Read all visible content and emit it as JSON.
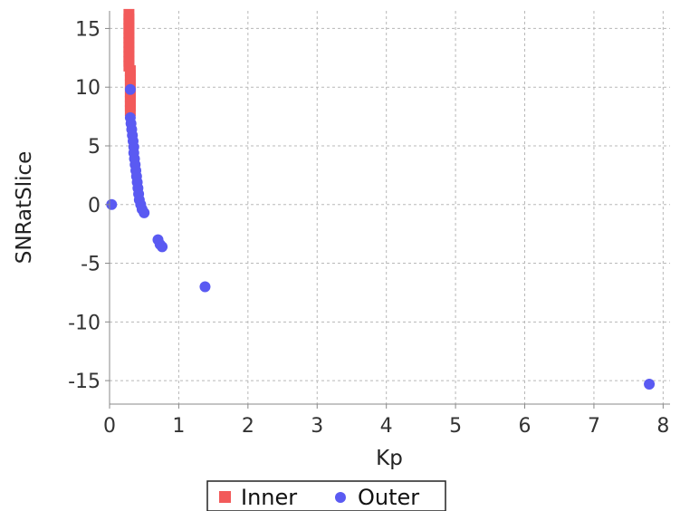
{
  "chart_data": {
    "type": "scatter",
    "title": "",
    "xlabel": "Kp",
    "ylabel": "SNRatSlice",
    "xlim": [
      0,
      8.1
    ],
    "ylim": [
      -17,
      16.5
    ],
    "x_ticks": [
      0,
      1,
      2,
      3,
      4,
      5,
      6,
      7,
      8
    ],
    "y_ticks": [
      15,
      10,
      5,
      0,
      -5,
      -10,
      -15
    ],
    "grid": true,
    "legend_position": "bottom-center",
    "series": [
      {
        "name": "Inner",
        "color": "#f25a5a",
        "marker": "square",
        "points": [
          {
            "x": 0.28,
            "y": 16.2
          },
          {
            "x": 0.28,
            "y": 15.8
          },
          {
            "x": 0.28,
            "y": 15.4
          },
          {
            "x": 0.28,
            "y": 15.0
          },
          {
            "x": 0.28,
            "y": 14.6
          },
          {
            "x": 0.28,
            "y": 14.2
          },
          {
            "x": 0.28,
            "y": 13.8
          },
          {
            "x": 0.28,
            "y": 13.4
          },
          {
            "x": 0.28,
            "y": 13.0
          },
          {
            "x": 0.28,
            "y": 12.6
          },
          {
            "x": 0.28,
            "y": 12.2
          },
          {
            "x": 0.28,
            "y": 11.8
          },
          {
            "x": 0.3,
            "y": 11.4
          },
          {
            "x": 0.3,
            "y": 11.0
          },
          {
            "x": 0.3,
            "y": 10.6
          },
          {
            "x": 0.3,
            "y": 10.2
          },
          {
            "x": 0.3,
            "y": 9.6
          },
          {
            "x": 0.3,
            "y": 9.2
          },
          {
            "x": 0.3,
            "y": 8.8
          },
          {
            "x": 0.3,
            "y": 8.4
          },
          {
            "x": 0.3,
            "y": 8.0
          }
        ]
      },
      {
        "name": "Outer",
        "color": "#5a5af2",
        "marker": "circle",
        "points": [
          {
            "x": 0.03,
            "y": 0.0
          },
          {
            "x": 0.3,
            "y": 9.8
          },
          {
            "x": 0.3,
            "y": 7.4
          },
          {
            "x": 0.31,
            "y": 6.9
          },
          {
            "x": 0.32,
            "y": 6.4
          },
          {
            "x": 0.33,
            "y": 5.9
          },
          {
            "x": 0.34,
            "y": 5.4
          },
          {
            "x": 0.35,
            "y": 4.9
          },
          {
            "x": 0.35,
            "y": 4.4
          },
          {
            "x": 0.36,
            "y": 3.9
          },
          {
            "x": 0.37,
            "y": 3.4
          },
          {
            "x": 0.38,
            "y": 2.9
          },
          {
            "x": 0.39,
            "y": 2.4
          },
          {
            "x": 0.4,
            "y": 1.9
          },
          {
            "x": 0.41,
            "y": 1.4
          },
          {
            "x": 0.42,
            "y": 0.9
          },
          {
            "x": 0.43,
            "y": 0.4
          },
          {
            "x": 0.45,
            "y": 0.0
          },
          {
            "x": 0.47,
            "y": -0.4
          },
          {
            "x": 0.5,
            "y": -0.7
          },
          {
            "x": 0.7,
            "y": -3.0
          },
          {
            "x": 0.73,
            "y": -3.4
          },
          {
            "x": 0.76,
            "y": -3.6
          },
          {
            "x": 1.38,
            "y": -7.0
          },
          {
            "x": 7.8,
            "y": -15.3
          }
        ]
      }
    ]
  }
}
